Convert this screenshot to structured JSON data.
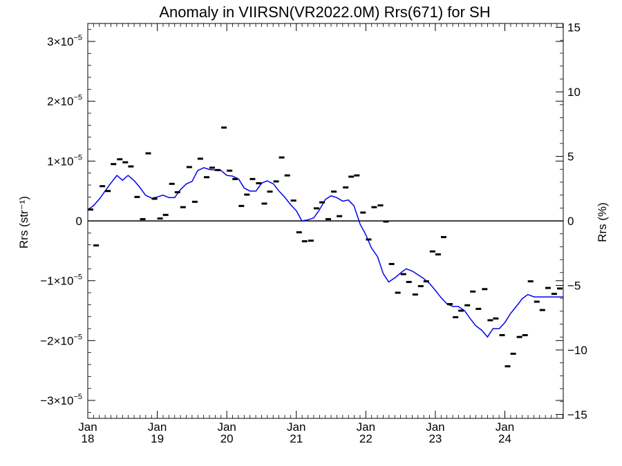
{
  "chart_data": {
    "type": "scatter",
    "title": "Anomaly in VIIRSN(VR2022.0M) Rrs(671) for SH",
    "ylabel_left": "Rrs (str⁻¹)",
    "ylabel_right": "Rrs (%)",
    "xlabel": "",
    "x_unit": "year",
    "xlim": [
      2018.0,
      2024.84
    ],
    "ylim_left": [
      -3.3e-05,
      3.3e-05
    ],
    "ylim_right": [
      -15.3,
      15.3
    ],
    "x_ticks": [
      {
        "value": 2018,
        "month": "Jan",
        "year": "18"
      },
      {
        "value": 2019,
        "month": "Jan",
        "year": "19"
      },
      {
        "value": 2020,
        "month": "Jan",
        "year": "20"
      },
      {
        "value": 2021,
        "month": "Jan",
        "year": "21"
      },
      {
        "value": 2022,
        "month": "Jan",
        "year": "22"
      },
      {
        "value": 2023,
        "month": "Jan",
        "year": "23"
      },
      {
        "value": 2024,
        "month": "Jan",
        "year": "24"
      }
    ],
    "y_ticks_left": [
      {
        "value": 3e-05,
        "mant": "3×10",
        "exp": "−5"
      },
      {
        "value": 2e-05,
        "mant": "2×10",
        "exp": "−5"
      },
      {
        "value": 1e-05,
        "mant": "1×10",
        "exp": "−5"
      },
      {
        "value": 0,
        "mant": "0",
        "exp": ""
      },
      {
        "value": -1e-05,
        "mant": "−1×10",
        "exp": "−5"
      },
      {
        "value": -2e-05,
        "mant": "−2×10",
        "exp": "−5"
      },
      {
        "value": -3e-05,
        "mant": "−3×10",
        "exp": "−5"
      }
    ],
    "y_ticks_right": [
      {
        "value": 15,
        "label": "15"
      },
      {
        "value": 10,
        "label": "10"
      },
      {
        "value": 5,
        "label": "5"
      },
      {
        "value": 0,
        "label": "0"
      },
      {
        "value": -5,
        "label": "−5"
      },
      {
        "value": -10,
        "label": "−10"
      },
      {
        "value": -15,
        "label": "−15"
      }
    ],
    "zero_line": true,
    "series": [
      {
        "kind": "monthly_anomaly",
        "marker": "dash",
        "color": "#000000",
        "x": [
          2018.04,
          2018.12,
          2018.21,
          2018.29,
          2018.37,
          2018.46,
          2018.54,
          2018.62,
          2018.71,
          2018.79,
          2018.87,
          2018.96,
          2019.04,
          2019.12,
          2019.21,
          2019.29,
          2019.37,
          2019.46,
          2019.54,
          2019.62,
          2019.71,
          2019.79,
          2019.87,
          2019.96,
          2020.04,
          2020.12,
          2020.21,
          2020.29,
          2020.37,
          2020.46,
          2020.54,
          2020.62,
          2020.71,
          2020.79,
          2020.87,
          2020.96,
          2021.04,
          2021.12,
          2021.21,
          2021.29,
          2021.37,
          2021.46,
          2021.54,
          2021.62,
          2021.71,
          2021.79,
          2021.87,
          2021.96,
          2022.04,
          2022.12,
          2022.21,
          2022.29,
          2022.37,
          2022.46,
          2022.54,
          2022.62,
          2022.71,
          2022.79,
          2022.87,
          2022.96,
          2023.04,
          2023.12,
          2023.21,
          2023.29,
          2023.37,
          2023.46,
          2023.54,
          2023.62,
          2023.71,
          2023.79,
          2023.87,
          2023.96,
          2024.04,
          2024.12,
          2024.21,
          2024.29,
          2024.37,
          2024.46,
          2024.54,
          2024.62,
          2024.71,
          2024.79
        ],
        "y": [
          1.9e-06,
          -4.1e-06,
          5.8e-06,
          5e-06,
          9.5e-06,
          1.03e-05,
          9.8e-06,
          9.1e-06,
          4e-06,
          3e-07,
          1.13e-05,
          3.7e-06,
          4e-07,
          1e-06,
          6.2e-06,
          4.8e-06,
          2.3e-06,
          9e-06,
          3.2e-06,
          1.04e-05,
          7.3e-06,
          8.9e-06,
          8.5e-06,
          1.56e-05,
          8.4e-06,
          7e-06,
          2.5e-06,
          4.4e-06,
          7e-06,
          6.3e-06,
          2.9e-06,
          4.9e-06,
          6.6e-06,
          1.06e-05,
          7.6e-06,
          3.4e-06,
          -1.9e-06,
          -3.4e-06,
          -3.3e-06,
          2.1e-06,
          3.1e-06,
          3e-07,
          4.9e-06,
          8e-07,
          5.6e-06,
          7.4e-06,
          7.6e-06,
          1.4e-06,
          -3.1e-06,
          2.3e-06,
          2.6e-06,
          -1e-07,
          -7.2e-06,
          -1.2e-05,
          -8.9e-06,
          -1.02e-05,
          -1.23e-05,
          -1.09e-05,
          -1.01e-05,
          -5.1e-06,
          -5.6e-06,
          -2.7e-06,
          -1.39e-05,
          -1.61e-05,
          -1.5e-05,
          -1.41e-05,
          -1.18e-05,
          -1.47e-05,
          -1.14e-05,
          -1.66e-05,
          -1.63e-05,
          -1.91e-05,
          -2.43e-05,
          -2.22e-05,
          -1.94e-05,
          -1.91e-05,
          -1.01e-05,
          -1.35e-05,
          -1.49e-05,
          -1.12e-05,
          -1.22e-05,
          -1.13e-05
        ]
      },
      {
        "kind": "running_mean",
        "marker": "line",
        "color": "#0000ee",
        "x": [
          2018.0,
          2018.08,
          2018.17,
          2018.25,
          2018.33,
          2018.42,
          2018.5,
          2018.58,
          2018.67,
          2018.75,
          2018.83,
          2018.92,
          2019.0,
          2019.08,
          2019.17,
          2019.25,
          2019.33,
          2019.42,
          2019.5,
          2019.58,
          2019.67,
          2019.75,
          2019.83,
          2019.92,
          2020.0,
          2020.08,
          2020.17,
          2020.25,
          2020.33,
          2020.42,
          2020.5,
          2020.58,
          2020.67,
          2020.75,
          2020.83,
          2020.92,
          2021.0,
          2021.08,
          2021.17,
          2021.25,
          2021.33,
          2021.42,
          2021.5,
          2021.58,
          2021.67,
          2021.75,
          2021.83,
          2021.92,
          2022.0,
          2022.08,
          2022.17,
          2022.25,
          2022.33,
          2022.42,
          2022.5,
          2022.58,
          2022.67,
          2022.75,
          2022.83,
          2022.92,
          2023.0,
          2023.08,
          2023.17,
          2023.25,
          2023.33,
          2023.42,
          2023.5,
          2023.58,
          2023.67,
          2023.75,
          2023.83,
          2023.92,
          2024.0,
          2024.08,
          2024.17,
          2024.25,
          2024.33,
          2024.42,
          2024.5,
          2024.58,
          2024.67,
          2024.75,
          2024.84
        ],
        "y": [
          1.9e-06,
          2.5e-06,
          3.7e-06,
          5e-06,
          6.3e-06,
          7.6e-06,
          6.8e-06,
          7.6e-06,
          6.7e-06,
          5.6e-06,
          4.3e-06,
          3.8e-06,
          4e-06,
          4.3e-06,
          3.9e-06,
          3.9e-06,
          5.2e-06,
          6.2e-06,
          6.6e-06,
          8.4e-06,
          8.9e-06,
          8.6e-06,
          8.5e-06,
          8.4e-06,
          7.6e-06,
          7.5e-06,
          7e-06,
          5.5e-06,
          5e-06,
          5e-06,
          6.3e-06,
          6.7e-06,
          6.2e-06,
          5e-06,
          4e-06,
          2.7e-06,
          1.7e-06,
          0.0,
          2e-07,
          5e-07,
          1.8e-06,
          3.6e-06,
          4.2e-06,
          3.9e-06,
          3.3e-06,
          3.5e-06,
          2.5e-06,
          -6e-07,
          -2.3e-06,
          -4.5e-06,
          -6e-06,
          -8.8e-06,
          -1.02e-05,
          -9.5e-06,
          -8.7e-06,
          -8e-06,
          -8.4e-06,
          -9e-06,
          -9.6e-06,
          -1.05e-05,
          -1.16e-05,
          -1.28e-05,
          -1.39e-05,
          -1.43e-05,
          -1.43e-05,
          -1.5e-05,
          -1.63e-05,
          -1.75e-05,
          -1.83e-05,
          -1.94e-05,
          -1.8e-05,
          -1.8e-05,
          -1.7e-05,
          -1.55e-05,
          -1.42e-05,
          -1.3e-05,
          -1.23e-05,
          -1.27e-05,
          -1.27e-05,
          -1.27e-05,
          -1.27e-05,
          -1.27e-05,
          -1.27e-05
        ]
      }
    ]
  }
}
